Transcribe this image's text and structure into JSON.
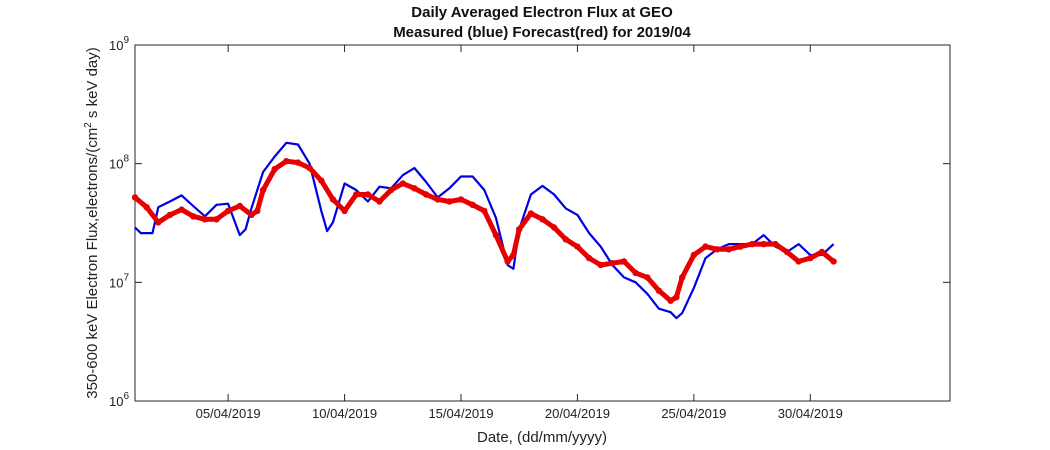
{
  "chart_data": {
    "type": "line",
    "title": "Daily Averaged Electron Flux at GEO",
    "subtitle": "Measured (blue) Forecast(red) for 2019/04",
    "xlabel": "Date, (dd/mm/yyyy)",
    "ylabel": {
      "prefix": "350-600 keV Electron Flux,electrons/(cm",
      "sup": "2",
      "suffix": " s keV day)"
    },
    "x_range": [
      "2019-04-01",
      "2019-05-06"
    ],
    "y_range": [
      1000000,
      1000000000
    ],
    "y_scale": "log",
    "grid": false,
    "x_ticks": [
      "05/04/2019",
      "10/04/2019",
      "15/04/2019",
      "20/04/2019",
      "25/04/2019",
      "30/04/2019"
    ],
    "y_ticks": [
      {
        "value": 1000000,
        "base": "10",
        "exp": "6"
      },
      {
        "value": 10000000,
        "base": "10",
        "exp": "7"
      },
      {
        "value": 100000000,
        "base": "10",
        "exp": "8"
      },
      {
        "value": 1000000000,
        "base": "10",
        "exp": "9"
      }
    ],
    "series": [
      {
        "color": "#0000e6",
        "style": "line",
        "x": [
          "2019-04-01",
          "2019-04-01T06:00",
          "2019-04-01T18:00",
          "2019-04-02T00:00",
          "2019-04-02T12:00",
          "2019-04-03T00:00",
          "2019-04-03T12:00",
          "2019-04-04T00:00",
          "2019-04-04T12:00",
          "2019-04-05T00:00",
          "2019-04-05T12:00",
          "2019-04-05T18:00",
          "2019-04-06T00:00",
          "2019-04-06T12:00",
          "2019-04-07T00:00",
          "2019-04-07T12:00",
          "2019-04-08T00:00",
          "2019-04-08T12:00",
          "2019-04-09T00:00",
          "2019-04-09T06:00",
          "2019-04-09T12:00",
          "2019-04-10T00:00",
          "2019-04-10T12:00",
          "2019-04-11T00:00",
          "2019-04-11T12:00",
          "2019-04-12T00:00",
          "2019-04-12T12:00",
          "2019-04-13T00:00",
          "2019-04-13T12:00",
          "2019-04-14T00:00",
          "2019-04-14T12:00",
          "2019-04-15T00:00",
          "2019-04-15T12:00",
          "2019-04-16T00:00",
          "2019-04-16T12:00",
          "2019-04-17T00:00",
          "2019-04-17T06:00",
          "2019-04-17T12:00",
          "2019-04-18T00:00",
          "2019-04-18T12:00",
          "2019-04-19T00:00",
          "2019-04-19T12:00",
          "2019-04-20T00:00",
          "2019-04-20T12:00",
          "2019-04-21T00:00",
          "2019-04-21T12:00",
          "2019-04-22T00:00",
          "2019-04-22T12:00",
          "2019-04-23T00:00",
          "2019-04-23T12:00",
          "2019-04-24T00:00",
          "2019-04-24T06:00",
          "2019-04-24T12:00",
          "2019-04-25T00:00",
          "2019-04-25T12:00",
          "2019-04-26T00:00",
          "2019-04-26T12:00",
          "2019-04-27T00:00",
          "2019-04-27T12:00",
          "2019-04-28T00:00",
          "2019-04-28T12:00",
          "2019-04-29T00:00",
          "2019-04-29T12:00",
          "2019-04-30T00:00",
          "2019-04-30T12:00",
          "2019-05-01T00:00"
        ],
        "y": [
          29000000,
          26000000,
          26000000,
          43000000,
          48000000,
          54000000,
          44000000,
          36000000,
          45000000,
          46000000,
          25000000,
          28000000,
          42000000,
          85000000,
          115000000,
          150000000,
          145000000,
          100000000,
          40000000,
          27000000,
          32000000,
          68000000,
          60000000,
          48000000,
          64000000,
          62000000,
          80000000,
          92000000,
          70000000,
          52000000,
          62000000,
          78000000,
          78000000,
          60000000,
          35000000,
          14000000,
          13000000,
          28000000,
          55000000,
          65000000,
          55000000,
          42000000,
          37000000,
          26000000,
          20000000,
          14000000,
          11000000,
          10000000,
          8000000,
          6000000,
          5600000,
          5000000,
          5500000,
          9000000,
          16000000,
          19000000,
          21000000,
          21000000,
          21000000,
          25000000,
          20000000,
          18000000,
          21000000,
          17000000,
          17000000,
          21000000
        ]
      },
      {
        "color": "#e60000",
        "style": "dots",
        "x": [
          "2019-04-01",
          "2019-04-01T12:00",
          "2019-04-02T00:00",
          "2019-04-02T12:00",
          "2019-04-03T00:00",
          "2019-04-03T12:00",
          "2019-04-04T00:00",
          "2019-04-04T12:00",
          "2019-04-05T00:00",
          "2019-04-05T12:00",
          "2019-04-06T00:00",
          "2019-04-06T06:00",
          "2019-04-06T12:00",
          "2019-04-07T00:00",
          "2019-04-07T12:00",
          "2019-04-08T00:00",
          "2019-04-08T12:00",
          "2019-04-09T00:00",
          "2019-04-09T12:00",
          "2019-04-10T00:00",
          "2019-04-10T12:00",
          "2019-04-11T00:00",
          "2019-04-11T12:00",
          "2019-04-12T00:00",
          "2019-04-12T12:00",
          "2019-04-13T00:00",
          "2019-04-13T12:00",
          "2019-04-14T00:00",
          "2019-04-14T12:00",
          "2019-04-15T00:00",
          "2019-04-15T12:00",
          "2019-04-16T00:00",
          "2019-04-16T12:00",
          "2019-04-17T00:00",
          "2019-04-17T06:00",
          "2019-04-17T12:00",
          "2019-04-18T00:00",
          "2019-04-18T12:00",
          "2019-04-19T00:00",
          "2019-04-19T12:00",
          "2019-04-20T00:00",
          "2019-04-20T12:00",
          "2019-04-21T00:00",
          "2019-04-21T12:00",
          "2019-04-22T00:00",
          "2019-04-22T12:00",
          "2019-04-23T00:00",
          "2019-04-23T12:00",
          "2019-04-24T00:00",
          "2019-04-24T06:00",
          "2019-04-24T12:00",
          "2019-04-25T00:00",
          "2019-04-25T12:00",
          "2019-04-26T00:00",
          "2019-04-26T12:00",
          "2019-04-27T00:00",
          "2019-04-27T12:00",
          "2019-04-28T00:00",
          "2019-04-28T12:00",
          "2019-04-29T00:00",
          "2019-04-29T12:00",
          "2019-04-30T00:00",
          "2019-04-30T12:00",
          "2019-05-01T00:00"
        ],
        "y": [
          52000000,
          43000000,
          32000000,
          37000000,
          41000000,
          36000000,
          34000000,
          34000000,
          40000000,
          44000000,
          37000000,
          40000000,
          60000000,
          90000000,
          105000000,
          102000000,
          92000000,
          72000000,
          50000000,
          40000000,
          55000000,
          55000000,
          48000000,
          60000000,
          68000000,
          62000000,
          55000000,
          50000000,
          48000000,
          50000000,
          45000000,
          40000000,
          25000000,
          15000000,
          17000000,
          28000000,
          38000000,
          34000000,
          29000000,
          23000000,
          20000000,
          16000000,
          14000000,
          14500000,
          15000000,
          12000000,
          11000000,
          8500000,
          7000000,
          7500000,
          11000000,
          17000000,
          20000000,
          19000000,
          19000000,
          20000000,
          21000000,
          21000000,
          21000000,
          18000000,
          15000000,
          16000000,
          18000000,
          15000000
        ]
      }
    ]
  }
}
